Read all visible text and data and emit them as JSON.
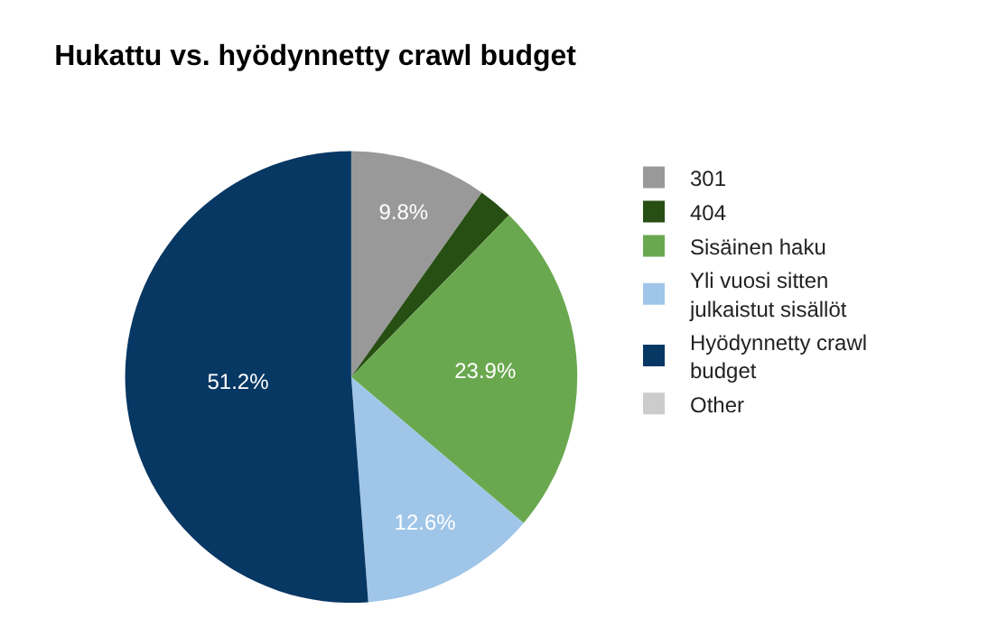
{
  "chart_data": {
    "type": "pie",
    "title": "Hukattu vs. hyödynnetty crawl budget",
    "categories": [
      "301",
      "404",
      "Sisäinen haku",
      "Yli vuosi sitten julkaistut sisällöt",
      "Hyödynnetty crawl budget",
      "Other"
    ],
    "values": [
      9.8,
      2.5,
      23.9,
      12.6,
      51.2,
      0
    ],
    "value_labels": [
      "9.8%",
      null,
      "23.9%",
      "12.6%",
      "51.2%",
      null
    ],
    "colors": [
      "#999999",
      "#274e13",
      "#6aa84f",
      "#9fc5e8",
      "#073763",
      "#cccccc"
    ],
    "legend": "right"
  }
}
